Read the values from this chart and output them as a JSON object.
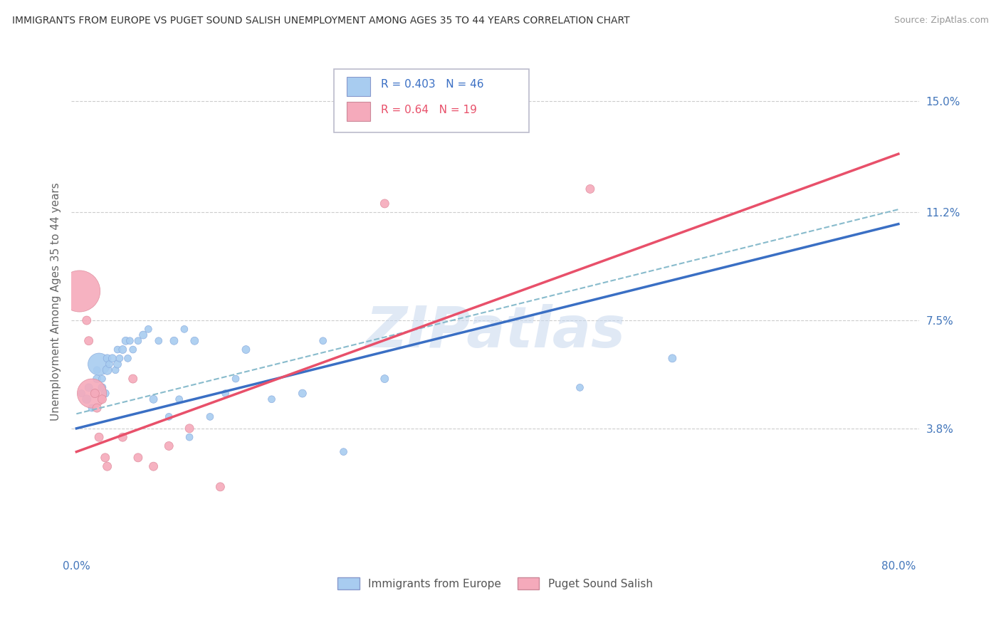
{
  "title": "IMMIGRANTS FROM EUROPE VS PUGET SOUND SALISH UNEMPLOYMENT AMONG AGES 35 TO 44 YEARS CORRELATION CHART",
  "source": "Source: ZipAtlas.com",
  "ylabel": "Unemployment Among Ages 35 to 44 years",
  "xlim": [
    -0.005,
    0.82
  ],
  "ylim": [
    -0.005,
    0.168
  ],
  "xticks": [
    0.0,
    0.1,
    0.2,
    0.3,
    0.4,
    0.5,
    0.6,
    0.7,
    0.8
  ],
  "xticklabels": [
    "0.0%",
    "",
    "",
    "",
    "",
    "",
    "",
    "",
    "80.0%"
  ],
  "ytick_positions": [
    0.038,
    0.075,
    0.112,
    0.15
  ],
  "ytick_labels": [
    "3.8%",
    "7.5%",
    "11.2%",
    "15.0%"
  ],
  "blue_R": 0.403,
  "blue_N": 46,
  "pink_R": 0.64,
  "pink_N": 19,
  "blue_color": "#A8CCF0",
  "pink_color": "#F5AABB",
  "blue_line_color": "#3A6FC4",
  "pink_line_color": "#E8506A",
  "blue_dash_color": "#88BBDD",
  "watermark_text": "ZIPatlas",
  "blue_points": [
    [
      0.005,
      0.05
    ],
    [
      0.01,
      0.048
    ],
    [
      0.012,
      0.052
    ],
    [
      0.015,
      0.045
    ],
    [
      0.018,
      0.05
    ],
    [
      0.02,
      0.055
    ],
    [
      0.02,
      0.058
    ],
    [
      0.022,
      0.06
    ],
    [
      0.025,
      0.052
    ],
    [
      0.025,
      0.055
    ],
    [
      0.028,
      0.05
    ],
    [
      0.03,
      0.058
    ],
    [
      0.03,
      0.062
    ],
    [
      0.032,
      0.06
    ],
    [
      0.035,
      0.062
    ],
    [
      0.038,
      0.058
    ],
    [
      0.04,
      0.06
    ],
    [
      0.04,
      0.065
    ],
    [
      0.042,
      0.062
    ],
    [
      0.045,
      0.065
    ],
    [
      0.048,
      0.068
    ],
    [
      0.05,
      0.062
    ],
    [
      0.052,
      0.068
    ],
    [
      0.055,
      0.065
    ],
    [
      0.06,
      0.068
    ],
    [
      0.065,
      0.07
    ],
    [
      0.07,
      0.072
    ],
    [
      0.075,
      0.048
    ],
    [
      0.08,
      0.068
    ],
    [
      0.09,
      0.042
    ],
    [
      0.095,
      0.068
    ],
    [
      0.1,
      0.048
    ],
    [
      0.105,
      0.072
    ],
    [
      0.11,
      0.035
    ],
    [
      0.115,
      0.068
    ],
    [
      0.13,
      0.042
    ],
    [
      0.145,
      0.05
    ],
    [
      0.155,
      0.055
    ],
    [
      0.165,
      0.065
    ],
    [
      0.19,
      0.048
    ],
    [
      0.22,
      0.05
    ],
    [
      0.24,
      0.068
    ],
    [
      0.26,
      0.03
    ],
    [
      0.3,
      0.055
    ],
    [
      0.49,
      0.052
    ],
    [
      0.58,
      0.062
    ]
  ],
  "blue_sizes": [
    20,
    30,
    25,
    20,
    30,
    25,
    20,
    200,
    25,
    20,
    25,
    35,
    25,
    20,
    25,
    20,
    25,
    20,
    20,
    25,
    25,
    20,
    20,
    20,
    20,
    25,
    20,
    25,
    20,
    20,
    25,
    20,
    20,
    20,
    25,
    20,
    20,
    20,
    25,
    20,
    25,
    20,
    20,
    25,
    20,
    25
  ],
  "pink_points": [
    [
      0.003,
      0.085
    ],
    [
      0.01,
      0.075
    ],
    [
      0.012,
      0.068
    ],
    [
      0.015,
      0.05
    ],
    [
      0.018,
      0.05
    ],
    [
      0.02,
      0.045
    ],
    [
      0.022,
      0.035
    ],
    [
      0.025,
      0.048
    ],
    [
      0.028,
      0.028
    ],
    [
      0.03,
      0.025
    ],
    [
      0.045,
      0.035
    ],
    [
      0.055,
      0.055
    ],
    [
      0.06,
      0.028
    ],
    [
      0.075,
      0.025
    ],
    [
      0.09,
      0.032
    ],
    [
      0.11,
      0.038
    ],
    [
      0.14,
      0.018
    ],
    [
      0.3,
      0.115
    ],
    [
      0.5,
      0.12
    ]
  ],
  "pink_sizes": [
    700,
    30,
    30,
    350,
    30,
    30,
    30,
    30,
    30,
    30,
    30,
    30,
    30,
    30,
    30,
    30,
    30,
    30,
    30
  ],
  "blue_trend_x": [
    0.0,
    0.8
  ],
  "blue_trend_y": [
    0.038,
    0.108
  ],
  "pink_trend_x": [
    0.0,
    0.8
  ],
  "pink_trend_y": [
    0.03,
    0.132
  ],
  "grid_color": "#CCCCCC",
  "bg_color": "#FFFFFF"
}
